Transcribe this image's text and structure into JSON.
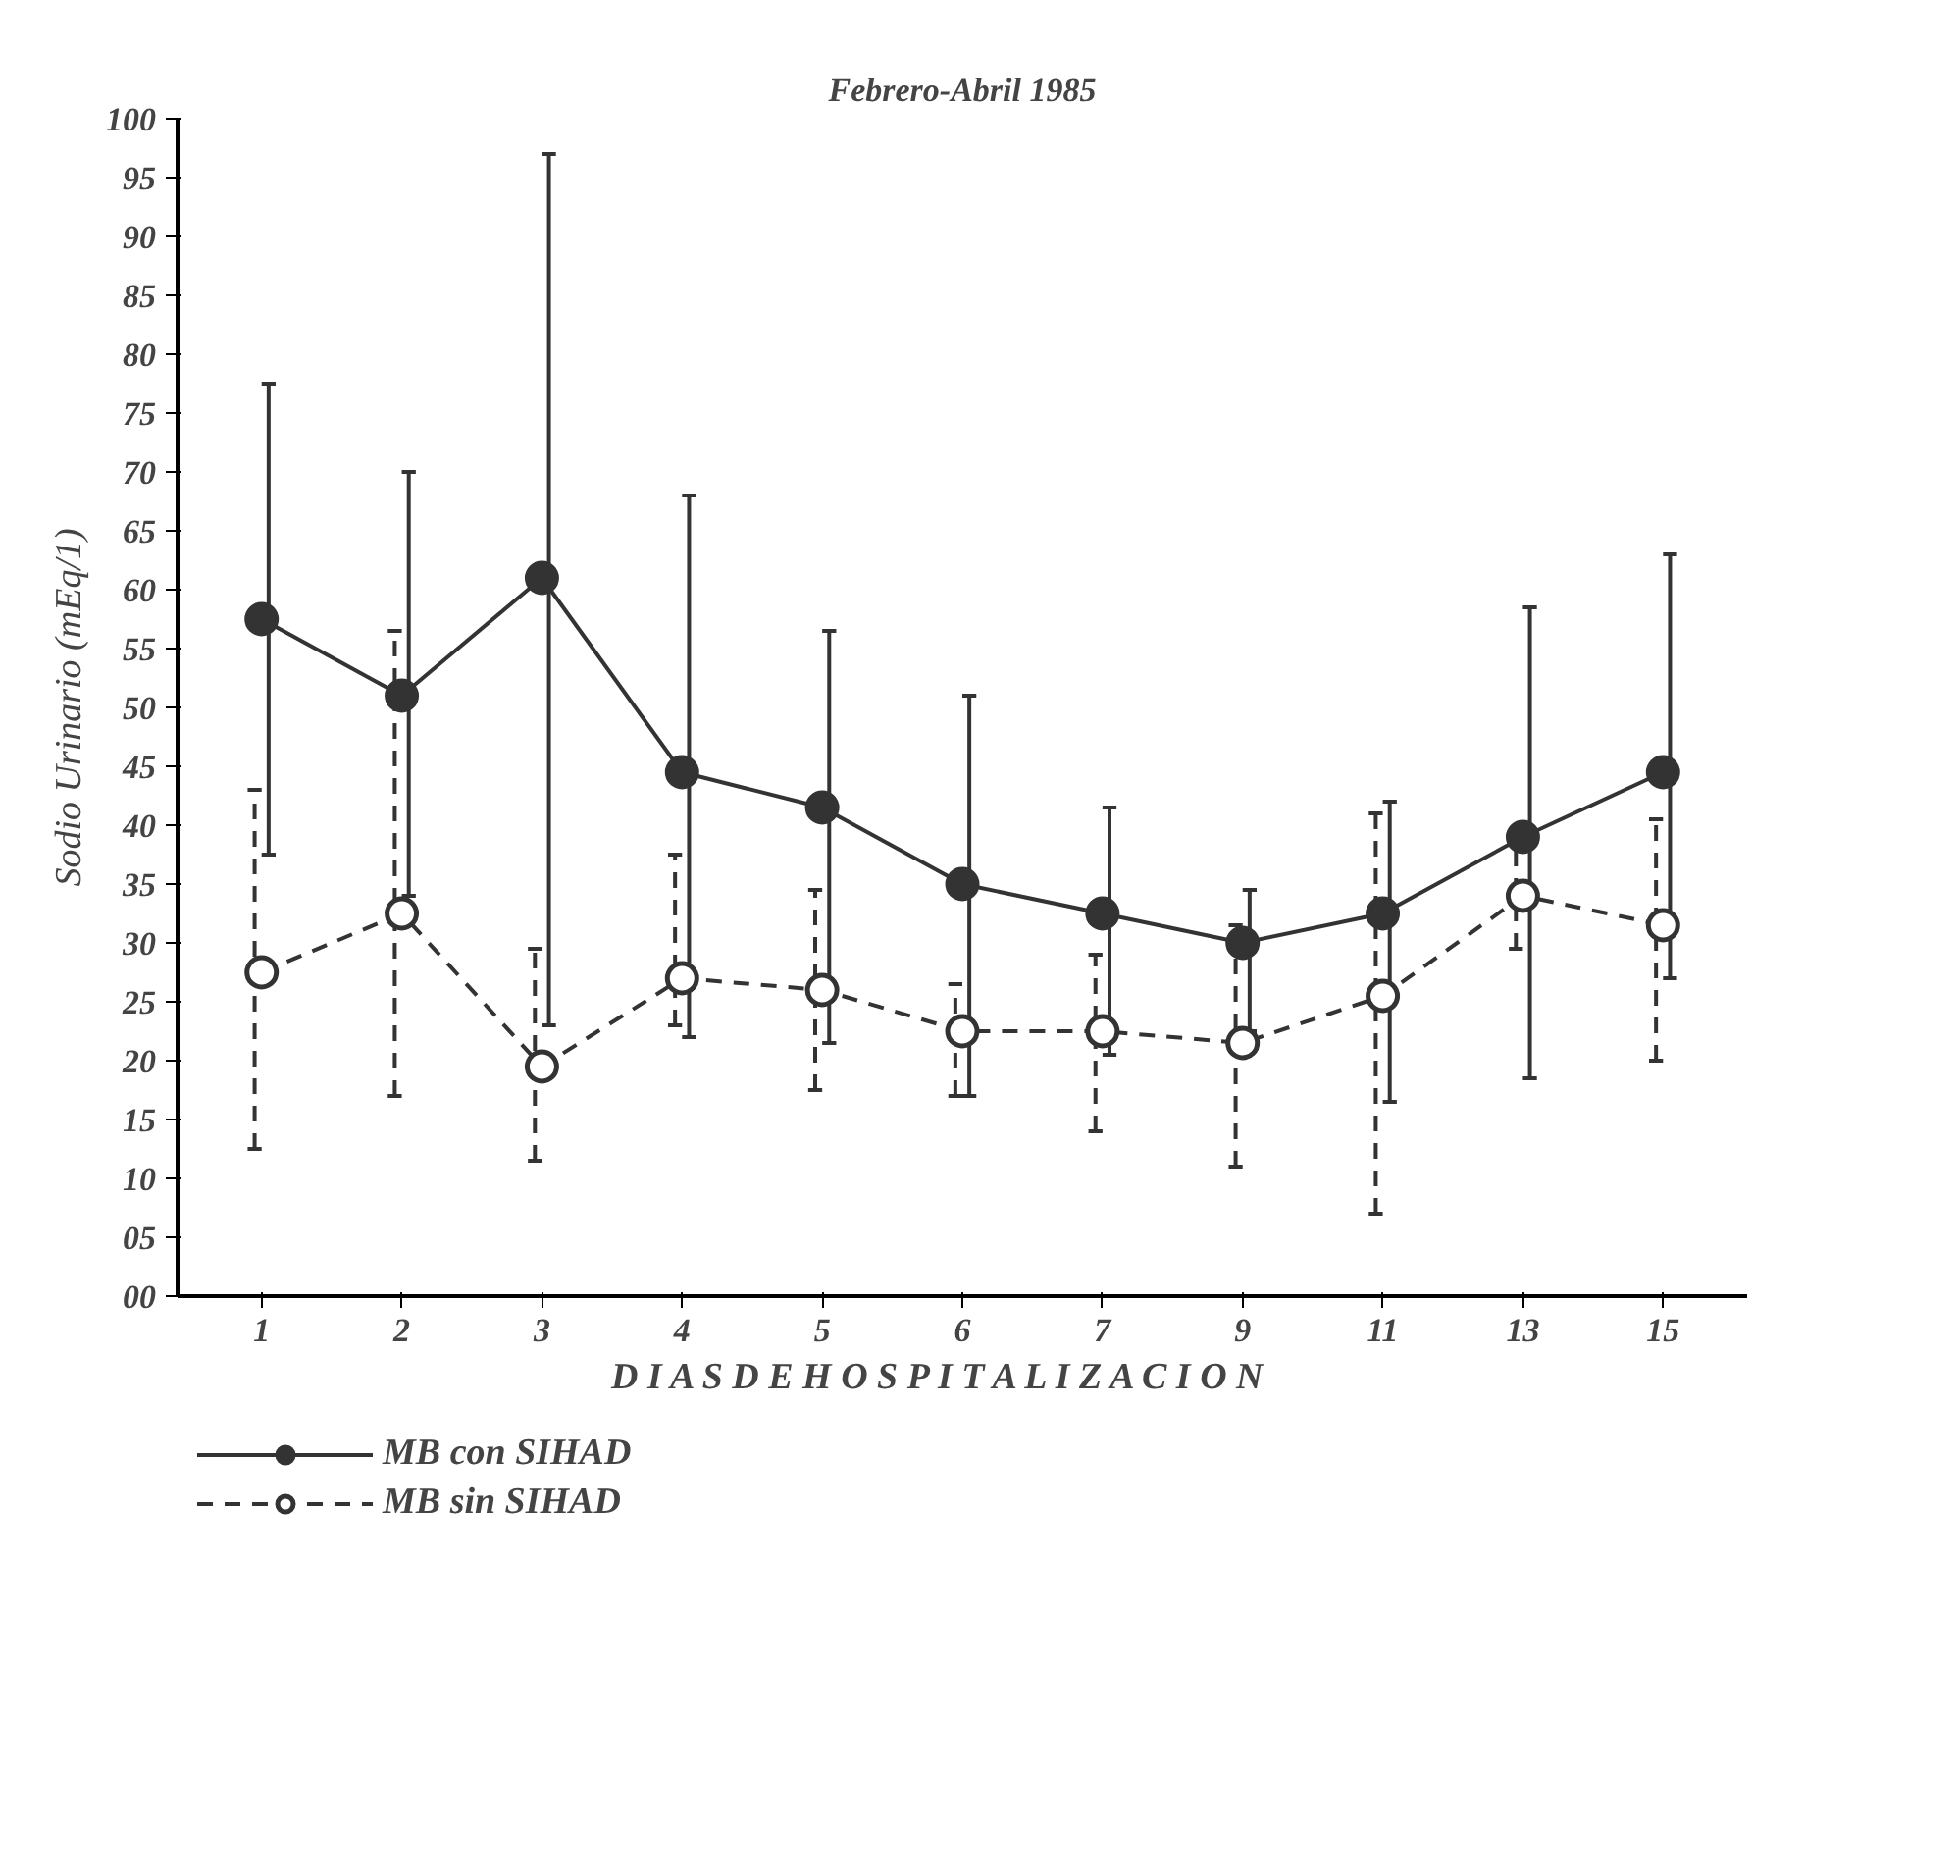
{
  "chart_data": {
    "type": "line",
    "title": "Febrero-Abril 1985",
    "xlabel": "D I A S   D E   H O S P I T A L I Z A C I O N",
    "ylabel": "Sodio Urinario (mEq/1)",
    "categories": [
      "1",
      "2",
      "3",
      "4",
      "5",
      "6",
      "7",
      "9",
      "11",
      "13",
      "15"
    ],
    "ylim": [
      0,
      100
    ],
    "yticks": [
      {
        "value": 0,
        "label": "00"
      },
      {
        "value": 5,
        "label": "05"
      },
      10,
      15,
      20,
      25,
      30,
      35,
      40,
      45,
      50,
      55,
      60,
      65,
      70,
      75,
      80,
      85,
      90,
      95,
      100
    ],
    "series": [
      {
        "name": "MB con SIHAD",
        "color": "#333333",
        "line_style": "solid",
        "values": [
          57.5,
          51,
          61,
          44.5,
          41.5,
          35,
          32.5,
          30,
          32.5,
          39,
          44.5
        ],
        "errors": [
          [
            37.5,
            77.5
          ],
          [
            34,
            70
          ],
          [
            23,
            97
          ],
          [
            22,
            68
          ],
          [
            21.5,
            56.5
          ],
          [
            17,
            51
          ],
          [
            20.5,
            41.5
          ],
          [
            22.5,
            34.5
          ],
          [
            16.5,
            42
          ],
          [
            18.5,
            58.5
          ],
          [
            27,
            63
          ]
        ]
      },
      {
        "name": "MB sin SIHAD",
        "color": "#333333",
        "line_style": "dashed",
        "values": [
          27.5,
          32.5,
          19.5,
          27,
          26,
          22.5,
          22.5,
          21.5,
          25.5,
          34,
          31.5
        ],
        "errors": [
          [
            12.5,
            43
          ],
          [
            17,
            56.5
          ],
          [
            11.5,
            29.5
          ],
          [
            23,
            37.5
          ],
          [
            17.5,
            34.5
          ],
          [
            17,
            26.5
          ],
          [
            14,
            29
          ],
          [
            11,
            31.5
          ],
          [
            7,
            41
          ],
          [
            29.5,
            39.5
          ],
          [
            20,
            40.5
          ]
        ]
      }
    ],
    "marker": "circle",
    "grid": false,
    "legend": "bottom left"
  }
}
